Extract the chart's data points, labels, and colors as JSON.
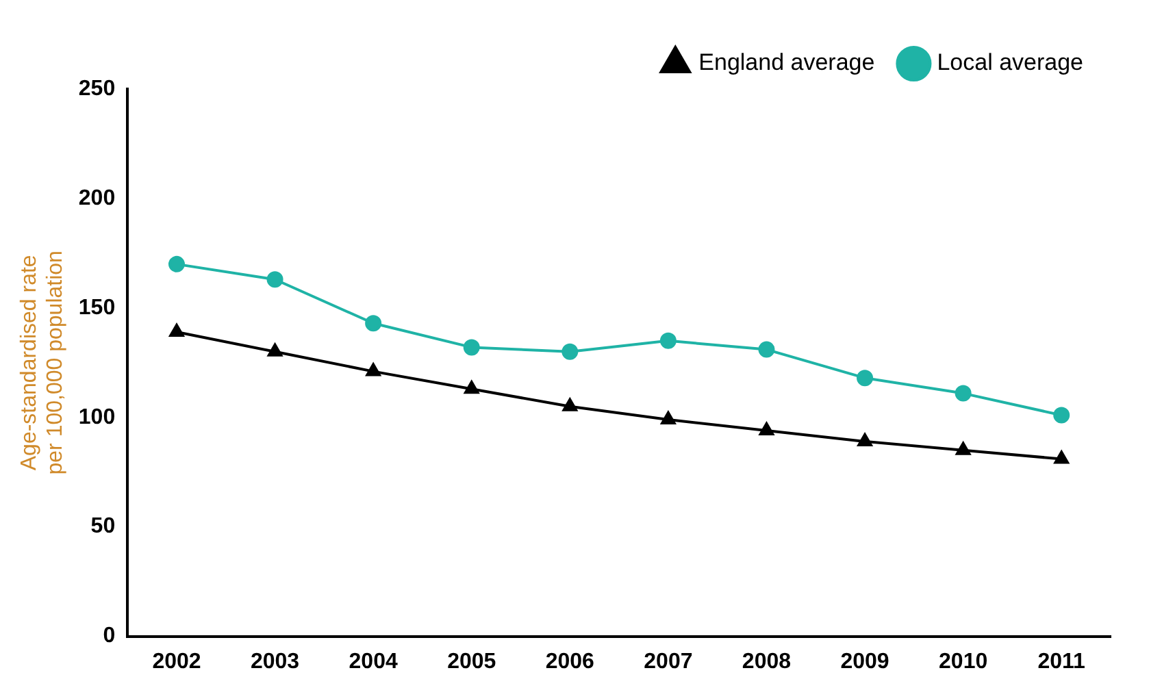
{
  "chart_data": {
    "type": "line",
    "ylabel": "Age-standardised rate\nper 100,000 population",
    "categories": [
      "2002",
      "2003",
      "2004",
      "2005",
      "2006",
      "2007",
      "2008",
      "2009",
      "2010",
      "2011"
    ],
    "series": [
      {
        "name": "England average",
        "color": "#000000",
        "marker": "triangle",
        "values": [
          139,
          130,
          121,
          113,
          105,
          99,
          94,
          89,
          85,
          81
        ]
      },
      {
        "name": "Local average",
        "color": "#1fb3a6",
        "marker": "circle",
        "values": [
          170,
          163,
          143,
          132,
          130,
          135,
          131,
          118,
          111,
          101
        ]
      }
    ],
    "ylim": [
      0,
      250
    ],
    "yticks": [
      0,
      50,
      100,
      150,
      200,
      250
    ],
    "grid": false,
    "legend": "top right"
  }
}
